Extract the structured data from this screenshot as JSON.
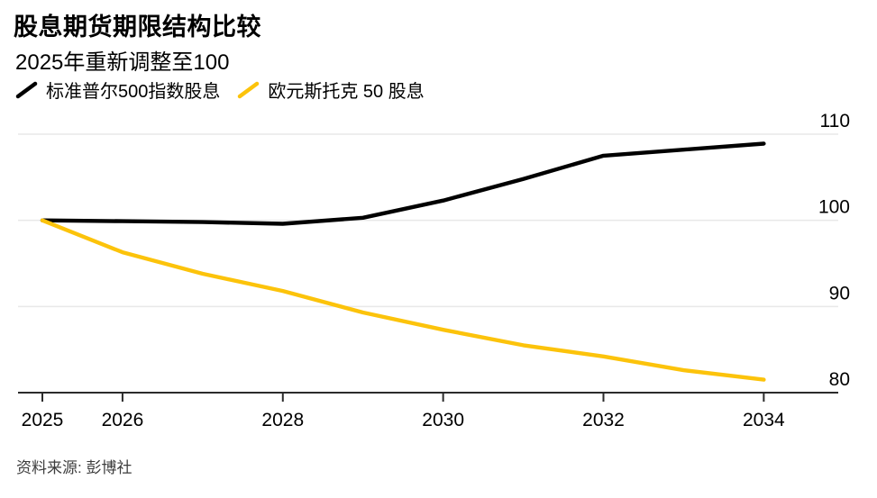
{
  "header": {
    "title": "股息期货期限结构比较",
    "subtitle": "2025年重新调整至100"
  },
  "legend": {
    "position": "top-left",
    "items": [
      {
        "label": "标准普尔500指数股息",
        "color": "#000000"
      },
      {
        "label": "欧元斯托克 50 股息",
        "color": "#FCC30B"
      }
    ]
  },
  "chart_data": {
    "type": "line",
    "title": "股息期货期限结构比较",
    "subtitle": "2025年重新调整至100",
    "x": [
      2025,
      2026,
      2027,
      2028,
      2029,
      2030,
      2031,
      2032,
      2033,
      2034
    ],
    "series": [
      {
        "name": "标准普尔500指数股息",
        "color": "#000000",
        "values": [
          100,
          99.9,
          99.8,
          99.6,
          100.3,
          102.3,
          104.8,
          107.5,
          108.2,
          108.9
        ]
      },
      {
        "name": "欧元斯托克 50 股息",
        "color": "#FCC30B",
        "values": [
          100,
          96.3,
          93.8,
          91.8,
          89.3,
          87.3,
          85.5,
          84.2,
          82.6,
          81.5
        ]
      }
    ],
    "x_ticks": [
      2025,
      2026,
      2028,
      2030,
      2032,
      2034
    ],
    "x_tick_labels": [
      "2025",
      "2026",
      "2028",
      "2030",
      "2032",
      "2034"
    ],
    "y_ticks": [
      80,
      90,
      100,
      110
    ],
    "y_tick_labels": [
      "80",
      "90",
      "100",
      "110"
    ],
    "xlim": [
      2025,
      2034
    ],
    "ylim": [
      78,
      113
    ],
    "grid": "horizontal",
    "axis_label_side": "right",
    "grid_color": "#e8e8e8",
    "axis_color": "#2b2b2b",
    "text_color": "#000000"
  },
  "footer": {
    "source": "资料来源: 彭博社"
  }
}
